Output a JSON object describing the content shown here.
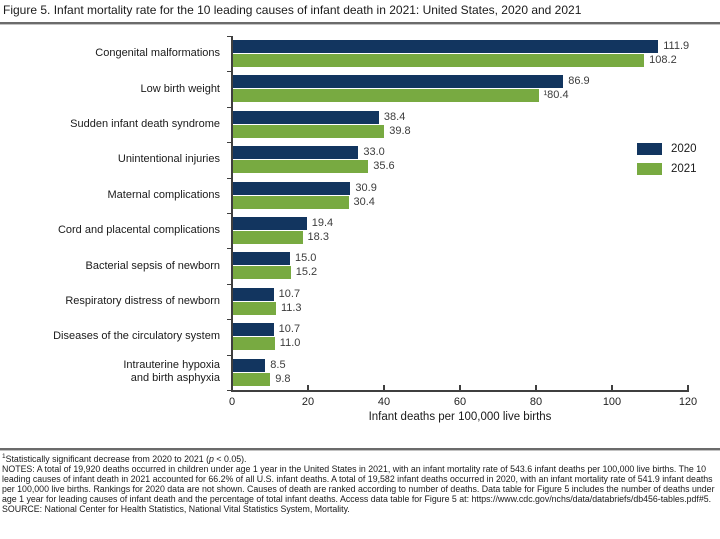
{
  "figure": {
    "title": "Figure 5. Infant mortality rate for the 10 leading causes of infant death in 2021: United States, 2020 and 2021"
  },
  "chart_data": {
    "type": "bar",
    "orientation": "horizontal",
    "title": "Figure 5. Infant mortality rate for the 10 leading causes of infant death in 2021: United States, 2020 and 2021",
    "categories": [
      "Congenital malformations",
      "Low birth weight",
      "Sudden infant death syndrome",
      "Unintentional injuries",
      "Maternal complications",
      "Cord and placental complications",
      "Bacterial sepsis of newborn",
      "Respiratory distress of newborn",
      "Diseases of the circulatory system",
      "Intrauterine hypoxia\nand birth asphyxia"
    ],
    "series": [
      {
        "name": "2020",
        "color": "#12355f",
        "values": [
          111.9,
          86.9,
          38.4,
          33.0,
          30.9,
          19.4,
          15.0,
          10.7,
          10.7,
          8.5
        ],
        "labels": [
          "111.9",
          "86.9",
          "38.4",
          "33.0",
          "30.9",
          "19.4",
          "15.0",
          "10.7",
          "10.7",
          "8.5"
        ]
      },
      {
        "name": "2021",
        "color": "#78aa41",
        "values": [
          108.2,
          80.4,
          39.8,
          35.6,
          30.4,
          18.3,
          15.2,
          11.3,
          11.0,
          9.8
        ],
        "labels": [
          "108.2",
          "¹80.4",
          "39.8",
          "35.6",
          "30.4",
          "18.3",
          "15.2",
          "11.3",
          "11.0",
          "9.8"
        ]
      }
    ],
    "xlabel": "Infant deaths per 100,000 live births",
    "xlim": [
      0,
      120
    ],
    "xticks": [
      0,
      20,
      40,
      60,
      80,
      100,
      120
    ],
    "grid": false,
    "legend_position": "right"
  },
  "footnotes": {
    "sig_sup": "1",
    "sig_pre": "Statistically significant decrease from 2020 to 2021 (",
    "sig_p": "p",
    "sig_post": " < 0.05).",
    "notes": "NOTES: A total of 19,920 deaths occurred in children under age 1 year in the United States in 2021, with an infant mortality rate of 543.6 infant deaths per 100,000 live births. The 10 leading causes of infant death in 2021 accounted for 66.2% of all U.S. infant deaths. A total of 19,582 infant deaths occurred in 2020, with an infant mortality rate of 541.9 infant deaths per 100,000 live births. Rankings for 2020 data are not shown. Causes of death are ranked according to number of deaths. Data table for Figure 5 includes the number of deaths under age 1 year for leading causes of infant death and the percentage of total infant deaths. Access data table for Figure 5 at: https://www.cdc.gov/nchs/data/databriefs/db456-tables.pdf#5.",
    "source": "SOURCE: National Center for Health Statistics, National Vital Statistics System, Mortality."
  },
  "colors": {
    "bar_2020": "#12355f",
    "bar_2021": "#78aa41",
    "axis": "#3f3f3f"
  }
}
